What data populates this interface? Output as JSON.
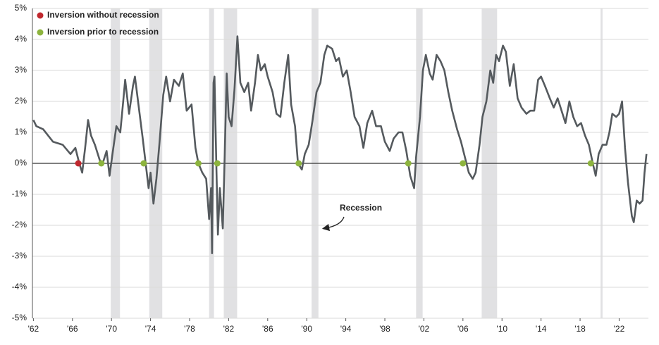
{
  "chart_data": {
    "type": "line",
    "x": [
      1962.0,
      1962.3,
      1963.0,
      1964.0,
      1965.0,
      1965.8,
      1966.3,
      1966.7,
      1967.0,
      1967.3,
      1967.6,
      1967.9,
      1968.3,
      1968.8,
      1969.1,
      1969.5,
      1969.8,
      1970.1,
      1970.5,
      1970.9,
      1971.2,
      1971.4,
      1971.8,
      1972.2,
      1972.4,
      1972.8,
      1973.2,
      1973.5,
      1973.8,
      1974.0,
      1974.3,
      1974.6,
      1974.9,
      1975.3,
      1975.6,
      1976.0,
      1976.4,
      1976.9,
      1977.3,
      1977.7,
      1978.2,
      1978.6,
      1978.9,
      1979.3,
      1979.7,
      1980.0,
      1980.2,
      1980.3,
      1980.45,
      1980.55,
      1980.75,
      1980.9,
      1981.1,
      1981.4,
      1981.6,
      1981.8,
      1982.0,
      1982.3,
      1982.6,
      1982.9,
      1983.2,
      1983.6,
      1984.0,
      1984.3,
      1984.7,
      1985.0,
      1985.3,
      1985.7,
      1986.0,
      1986.5,
      1986.9,
      1987.3,
      1987.7,
      1988.1,
      1988.4,
      1988.8,
      1989.1,
      1989.5,
      1989.8,
      1990.2,
      1990.6,
      1991.0,
      1991.4,
      1991.8,
      1992.1,
      1992.6,
      1993.0,
      1993.3,
      1993.7,
      1994.1,
      1994.5,
      1994.9,
      1995.4,
      1995.8,
      1996.2,
      1996.7,
      1997.1,
      1997.6,
      1998.0,
      1998.5,
      1998.9,
      1999.4,
      1999.8,
      2000.2,
      2000.6,
      2001.0,
      2001.2,
      2001.6,
      2001.9,
      2002.2,
      2002.6,
      2002.9,
      2003.3,
      2003.7,
      2004.1,
      2004.5,
      2004.9,
      2005.4,
      2005.8,
      2006.2,
      2006.6,
      2007.0,
      2007.3,
      2007.7,
      2008.0,
      2008.4,
      2008.8,
      2009.1,
      2009.4,
      2009.7,
      2010.1,
      2010.4,
      2010.8,
      2011.2,
      2011.6,
      2012.0,
      2012.5,
      2012.9,
      2013.3,
      2013.7,
      2014.0,
      2014.4,
      2014.9,
      2015.3,
      2015.7,
      2016.1,
      2016.5,
      2016.9,
      2017.3,
      2017.7,
      2018.1,
      2018.5,
      2018.9,
      2019.3,
      2019.6,
      2019.9,
      2020.3,
      2020.7,
      2021.0,
      2021.3,
      2021.7,
      2022.0,
      2022.3,
      2022.6,
      2022.9,
      2023.3,
      2023.5,
      2023.8,
      2024.1,
      2024.4,
      2024.6,
      2024.8
    ],
    "series": [
      {
        "color": "#555a5e",
        "values": [
          1.4,
          1.2,
          1.1,
          0.7,
          0.6,
          0.3,
          0.5,
          0.0,
          -0.3,
          0.5,
          1.4,
          0.9,
          0.6,
          0.1,
          0.0,
          0.4,
          -0.4,
          0.3,
          1.2,
          1.0,
          2.0,
          2.7,
          1.6,
          2.5,
          2.8,
          1.8,
          0.8,
          0.0,
          -0.8,
          -0.3,
          -1.3,
          -0.5,
          0.6,
          2.2,
          2.8,
          2.0,
          2.7,
          2.5,
          2.9,
          1.7,
          1.9,
          0.5,
          0.0,
          -0.3,
          -0.5,
          -1.8,
          -0.8,
          -2.9,
          2.6,
          2.8,
          -0.2,
          -2.3,
          -0.8,
          -2.1,
          0.3,
          2.9,
          1.5,
          1.2,
          2.4,
          4.1,
          2.6,
          2.3,
          2.6,
          1.7,
          2.6,
          3.5,
          3.0,
          3.2,
          2.8,
          2.3,
          1.6,
          1.5,
          2.6,
          3.5,
          1.9,
          1.2,
          0.0,
          -0.2,
          0.3,
          0.6,
          1.4,
          2.3,
          2.6,
          3.5,
          3.8,
          3.7,
          3.3,
          3.4,
          2.8,
          3.0,
          2.3,
          1.5,
          1.2,
          0.5,
          1.3,
          1.7,
          1.2,
          1.2,
          0.7,
          0.4,
          0.8,
          1.0,
          1.0,
          0.4,
          -0.4,
          -0.8,
          0.2,
          1.5,
          3.0,
          3.5,
          2.9,
          2.7,
          3.5,
          3.3,
          3.0,
          2.3,
          1.7,
          1.1,
          0.7,
          0.2,
          -0.3,
          -0.5,
          -0.3,
          0.6,
          1.5,
          2.0,
          3.0,
          2.6,
          3.5,
          3.3,
          3.8,
          3.6,
          2.5,
          3.2,
          2.1,
          1.8,
          1.6,
          1.7,
          1.7,
          2.7,
          2.8,
          2.5,
          2.1,
          1.8,
          2.1,
          1.7,
          1.3,
          2.0,
          1.5,
          1.2,
          1.3,
          0.9,
          0.6,
          0.0,
          -0.4,
          0.3,
          0.6,
          0.6,
          1.0,
          1.6,
          1.5,
          1.6,
          2.0,
          0.5,
          -0.6,
          -1.7,
          -1.9,
          -1.2,
          -1.3,
          -1.2,
          -0.3,
          0.3
        ]
      }
    ],
    "markers": [
      {
        "name": "Inversion without recession",
        "color": "#c0282e",
        "x": [
          1966.6
        ],
        "values": [
          0
        ]
      },
      {
        "name": "Inversion prior to recession",
        "color": "#8db43e",
        "x": [
          1968.96,
          1973.3,
          1978.9,
          1980.84,
          1989.17,
          2000.4,
          2006.0,
          2019.1
        ],
        "values": [
          0,
          0,
          0,
          0,
          0,
          0,
          0,
          0
        ]
      }
    ],
    "recessions": [
      [
        1969.92,
        1970.87
      ],
      [
        1973.87,
        1975.2
      ],
      [
        1980.0,
        1980.5
      ],
      [
        1981.5,
        1982.87
      ],
      [
        1990.5,
        1991.2
      ],
      [
        2001.2,
        2001.87
      ],
      [
        2007.92,
        2009.5
      ],
      [
        2020.1,
        2020.3
      ]
    ],
    "annotation": "Recession",
    "xlim": [
      1961.9,
      2025.0
    ],
    "xticks": [
      {
        "value": 1962,
        "label": "'62"
      },
      {
        "value": 1966,
        "label": "'66"
      },
      {
        "value": 1970,
        "label": "'70"
      },
      {
        "value": 1974,
        "label": "'74"
      },
      {
        "value": 1978,
        "label": "'78"
      },
      {
        "value": 1982,
        "label": "'82"
      },
      {
        "value": 1986,
        "label": "'86"
      },
      {
        "value": 1990,
        "label": "'90"
      },
      {
        "value": 1994,
        "label": "'94"
      },
      {
        "value": 1998,
        "label": "'98"
      },
      {
        "value": 2002,
        "label": "'02"
      },
      {
        "value": 2006,
        "label": "'06"
      },
      {
        "value": 2010,
        "label": "'10"
      },
      {
        "value": 2014,
        "label": "'14"
      },
      {
        "value": 2018,
        "label": "'18"
      },
      {
        "value": 2022,
        "label": "'22"
      }
    ],
    "ylim": [
      -5,
      5
    ],
    "yticks": [
      {
        "value": -5,
        "label": "-5%"
      },
      {
        "value": -4,
        "label": "-4%"
      },
      {
        "value": -3,
        "label": "-3%"
      },
      {
        "value": -2,
        "label": "-2%"
      },
      {
        "value": -1,
        "label": "-1%"
      },
      {
        "value": 0,
        "label": "0%"
      },
      {
        "value": 1,
        "label": "1%"
      },
      {
        "value": 2,
        "label": "2%"
      },
      {
        "value": 3,
        "label": "3%"
      },
      {
        "value": 4,
        "label": "4%"
      },
      {
        "value": 5,
        "label": "5%"
      }
    ],
    "grid": true
  }
}
